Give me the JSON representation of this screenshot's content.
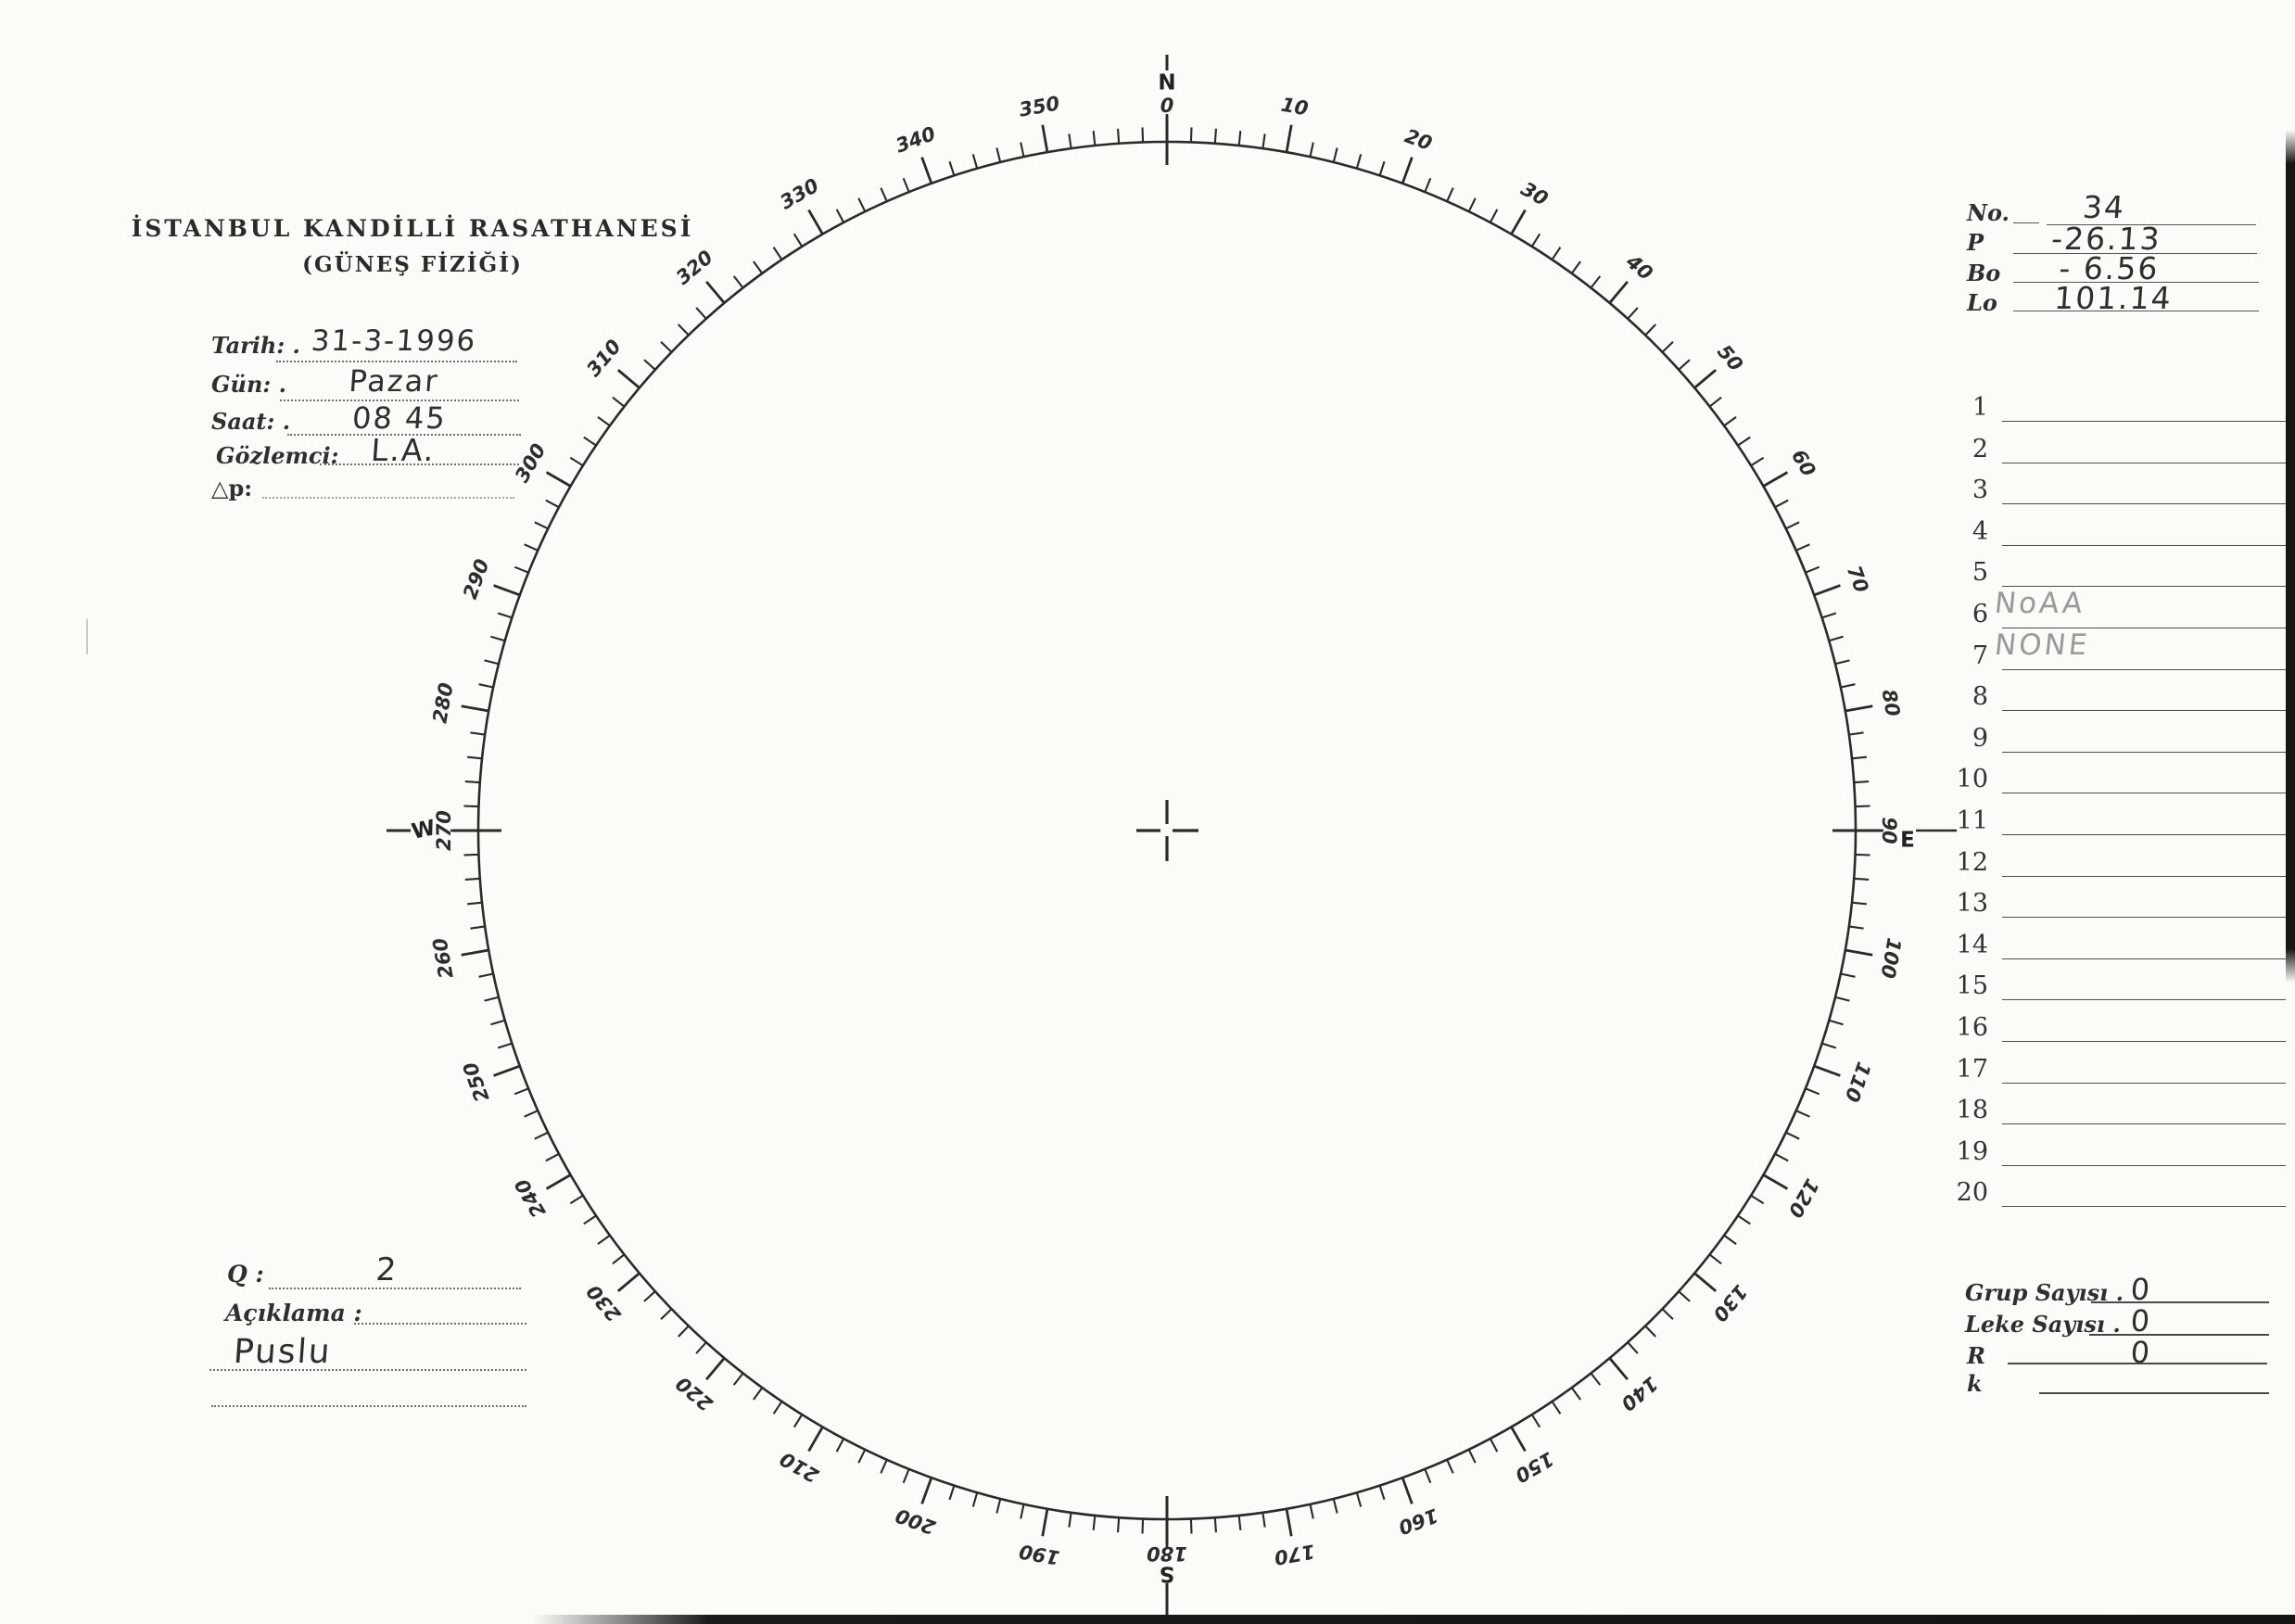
{
  "header": {
    "title_line1": "İSTANBUL KANDİLLİ RASATHANESİ",
    "title_line2": "(GÜNEŞ FİZİĞİ)"
  },
  "observation": {
    "tarih_label": "Tarih: .",
    "tarih_value": "31-3-1996",
    "gun_label": "Gün: .",
    "gun_value": "Pazar",
    "saat_label": "Saat: .",
    "saat_value": "08 45",
    "gozlemci_label": "Gözlemci:",
    "gozlemci_value": "L.A.",
    "dp_label": "△p:",
    "dp_value": ""
  },
  "solar_params": {
    "no_label": "No.",
    "no_value": "34",
    "p_label": "P",
    "p_value": "-26.13",
    "bo_label": "Bo",
    "bo_value": "- 6.56",
    "lo_label": "Lo",
    "lo_value": "101.14"
  },
  "region_list": {
    "rows": [
      {
        "num": "1",
        "value": ""
      },
      {
        "num": "2",
        "value": ""
      },
      {
        "num": "3",
        "value": ""
      },
      {
        "num": "4",
        "value": ""
      },
      {
        "num": "5",
        "value": ""
      },
      {
        "num": "6",
        "value": "NoAA"
      },
      {
        "num": "7",
        "value": "NONE"
      },
      {
        "num": "8",
        "value": ""
      },
      {
        "num": "9",
        "value": ""
      },
      {
        "num": "10",
        "value": ""
      },
      {
        "num": "11",
        "value": ""
      },
      {
        "num": "12",
        "value": ""
      },
      {
        "num": "13",
        "value": ""
      },
      {
        "num": "14",
        "value": ""
      },
      {
        "num": "15",
        "value": ""
      },
      {
        "num": "16",
        "value": ""
      },
      {
        "num": "17",
        "value": ""
      },
      {
        "num": "18",
        "value": ""
      },
      {
        "num": "19",
        "value": ""
      },
      {
        "num": "20",
        "value": ""
      }
    ]
  },
  "quality": {
    "q_label": "Q :",
    "q_value": "2",
    "aciklama_label": "Açıklama :",
    "aciklama_value": "Puslu"
  },
  "counts": {
    "grup_label": "Grup Sayısı .",
    "grup_value": "0",
    "leke_label": "Leke Sayısı .",
    "leke_value": "0",
    "r_label": "R",
    "r_value": "0",
    "k_label": "k",
    "k_value": ""
  },
  "dial": {
    "ink_color": "#2a2a2a",
    "cardinals": {
      "n": "N",
      "e": "E",
      "s": "S",
      "w": "W"
    },
    "degree_labels": [
      {
        "deg": 0,
        "text": "0"
      },
      {
        "deg": 10,
        "text": "10"
      },
      {
        "deg": 20,
        "text": "20"
      },
      {
        "deg": 30,
        "text": "30"
      },
      {
        "deg": 40,
        "text": "40"
      },
      {
        "deg": 50,
        "text": "50"
      },
      {
        "deg": 60,
        "text": "60"
      },
      {
        "deg": 70,
        "text": "70"
      },
      {
        "deg": 80,
        "text": "80"
      },
      {
        "deg": 90,
        "text": "90"
      },
      {
        "deg": 100,
        "text": "100"
      },
      {
        "deg": 110,
        "text": "110"
      },
      {
        "deg": 120,
        "text": "120"
      },
      {
        "deg": 130,
        "text": "130"
      },
      {
        "deg": 140,
        "text": "140"
      },
      {
        "deg": 150,
        "text": "150"
      },
      {
        "deg": 160,
        "text": "160"
      },
      {
        "deg": 170,
        "text": "170"
      },
      {
        "deg": 180,
        "text": "180"
      },
      {
        "deg": 190,
        "text": "190"
      },
      {
        "deg": 200,
        "text": "200"
      },
      {
        "deg": 210,
        "text": "210"
      },
      {
        "deg": 220,
        "text": "220"
      },
      {
        "deg": 230,
        "text": "230"
      },
      {
        "deg": 240,
        "text": "240"
      },
      {
        "deg": 250,
        "text": "250"
      },
      {
        "deg": 260,
        "text": "260"
      },
      {
        "deg": 270,
        "text": "270"
      },
      {
        "deg": 280,
        "text": "280"
      },
      {
        "deg": 290,
        "text": "290"
      },
      {
        "deg": 300,
        "text": "300"
      },
      {
        "deg": 310,
        "text": "310"
      },
      {
        "deg": 320,
        "text": "320"
      },
      {
        "deg": 330,
        "text": "330"
      },
      {
        "deg": 340,
        "text": "340"
      },
      {
        "deg": 350,
        "text": "350"
      }
    ]
  }
}
